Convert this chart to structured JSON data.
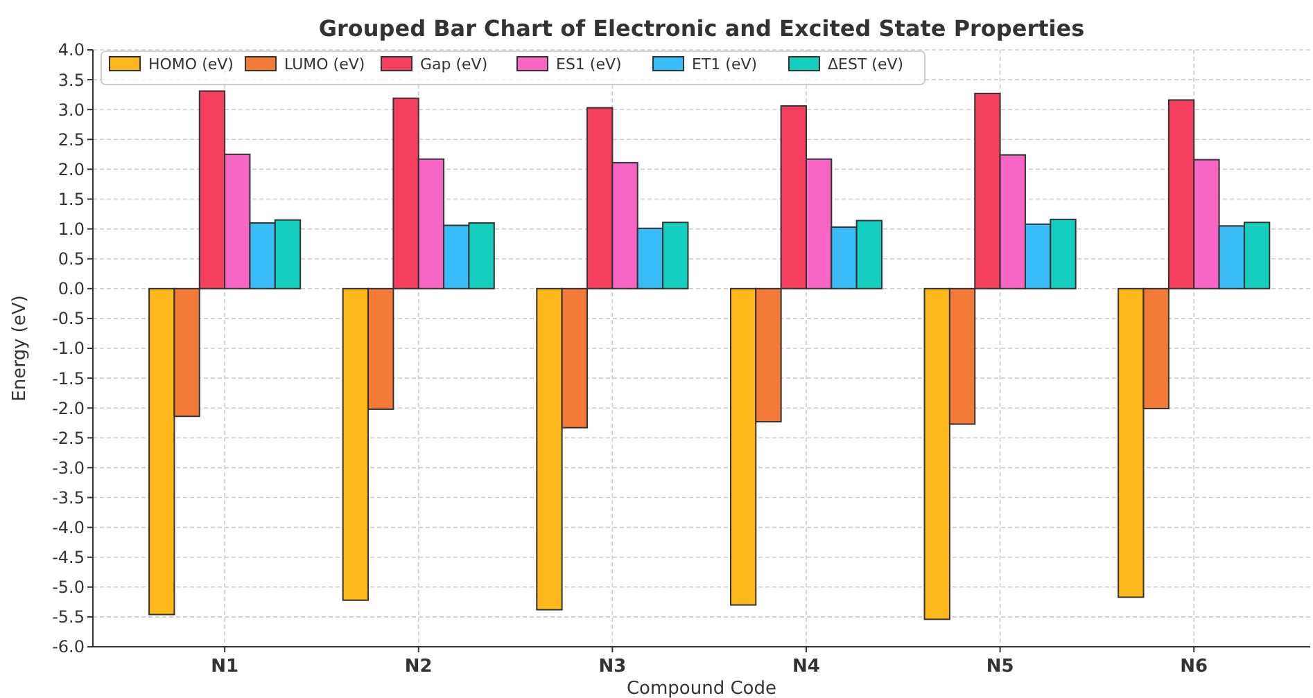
{
  "chart_data": {
    "type": "bar",
    "title": "Grouped Bar Chart of Electronic and Excited State Properties",
    "xlabel": "Compound Code",
    "ylabel": "Energy (eV)",
    "categories": [
      "N1",
      "N2",
      "N3",
      "N4",
      "N5",
      "N6"
    ],
    "series": [
      {
        "name": "HOMO (eV)",
        "color": "#ffb81c",
        "values": [
          -5.46,
          -5.22,
          -5.38,
          -5.3,
          -5.54,
          -5.17
        ]
      },
      {
        "name": "LUMO (eV)",
        "color": "#f47a38",
        "values": [
          -2.14,
          -2.02,
          -2.33,
          -2.23,
          -2.27,
          -2.01
        ]
      },
      {
        "name": "Gap (eV)",
        "color": "#f43f5e",
        "values": [
          3.31,
          3.19,
          3.03,
          3.06,
          3.27,
          3.16
        ]
      },
      {
        "name": "ES1 (eV)",
        "color": "#f766c4",
        "values": [
          2.25,
          2.17,
          2.11,
          2.17,
          2.24,
          2.16
        ]
      },
      {
        "name": "ET1 (eV)",
        "color": "#38bdf8",
        "values": [
          1.1,
          1.06,
          1.01,
          1.03,
          1.08,
          1.05
        ]
      },
      {
        "name": "ΔEST (eV)",
        "color": "#14cfc0",
        "values": [
          1.15,
          1.1,
          1.11,
          1.14,
          1.16,
          1.11
        ]
      }
    ],
    "ylim": [
      -6,
      4
    ],
    "yticks": [
      {
        "value": -6,
        "label": "-6.0"
      },
      {
        "value": -5.5,
        "label": "-5.5"
      },
      {
        "value": -5,
        "label": "-5.0"
      },
      {
        "value": -4.5,
        "label": "-4.5"
      },
      {
        "value": -4,
        "label": "-4.0"
      },
      {
        "value": -3.5,
        "label": "-3.5"
      },
      {
        "value": -3,
        "label": "-3.0"
      },
      {
        "value": -2.5,
        "label": "-2.5"
      },
      {
        "value": -2,
        "label": "-2.0"
      },
      {
        "value": -1.5,
        "label": "-1.5"
      },
      {
        "value": -1,
        "label": "-1.0"
      },
      {
        "value": -0.5,
        "label": "-0.5"
      },
      {
        "value": 0,
        "label": "0.0"
      },
      {
        "value": 0.5,
        "label": "0.5"
      },
      {
        "value": 1,
        "label": "1.0"
      },
      {
        "value": 1.5,
        "label": "1.5"
      },
      {
        "value": 2,
        "label": "2.0"
      },
      {
        "value": 2.5,
        "label": "2.5"
      },
      {
        "value": 3,
        "label": "3.0"
      },
      {
        "value": 3.5,
        "label": "3.5"
      },
      {
        "value": 4,
        "label": "4.0"
      }
    ],
    "grid": true,
    "legend": "top left"
  }
}
